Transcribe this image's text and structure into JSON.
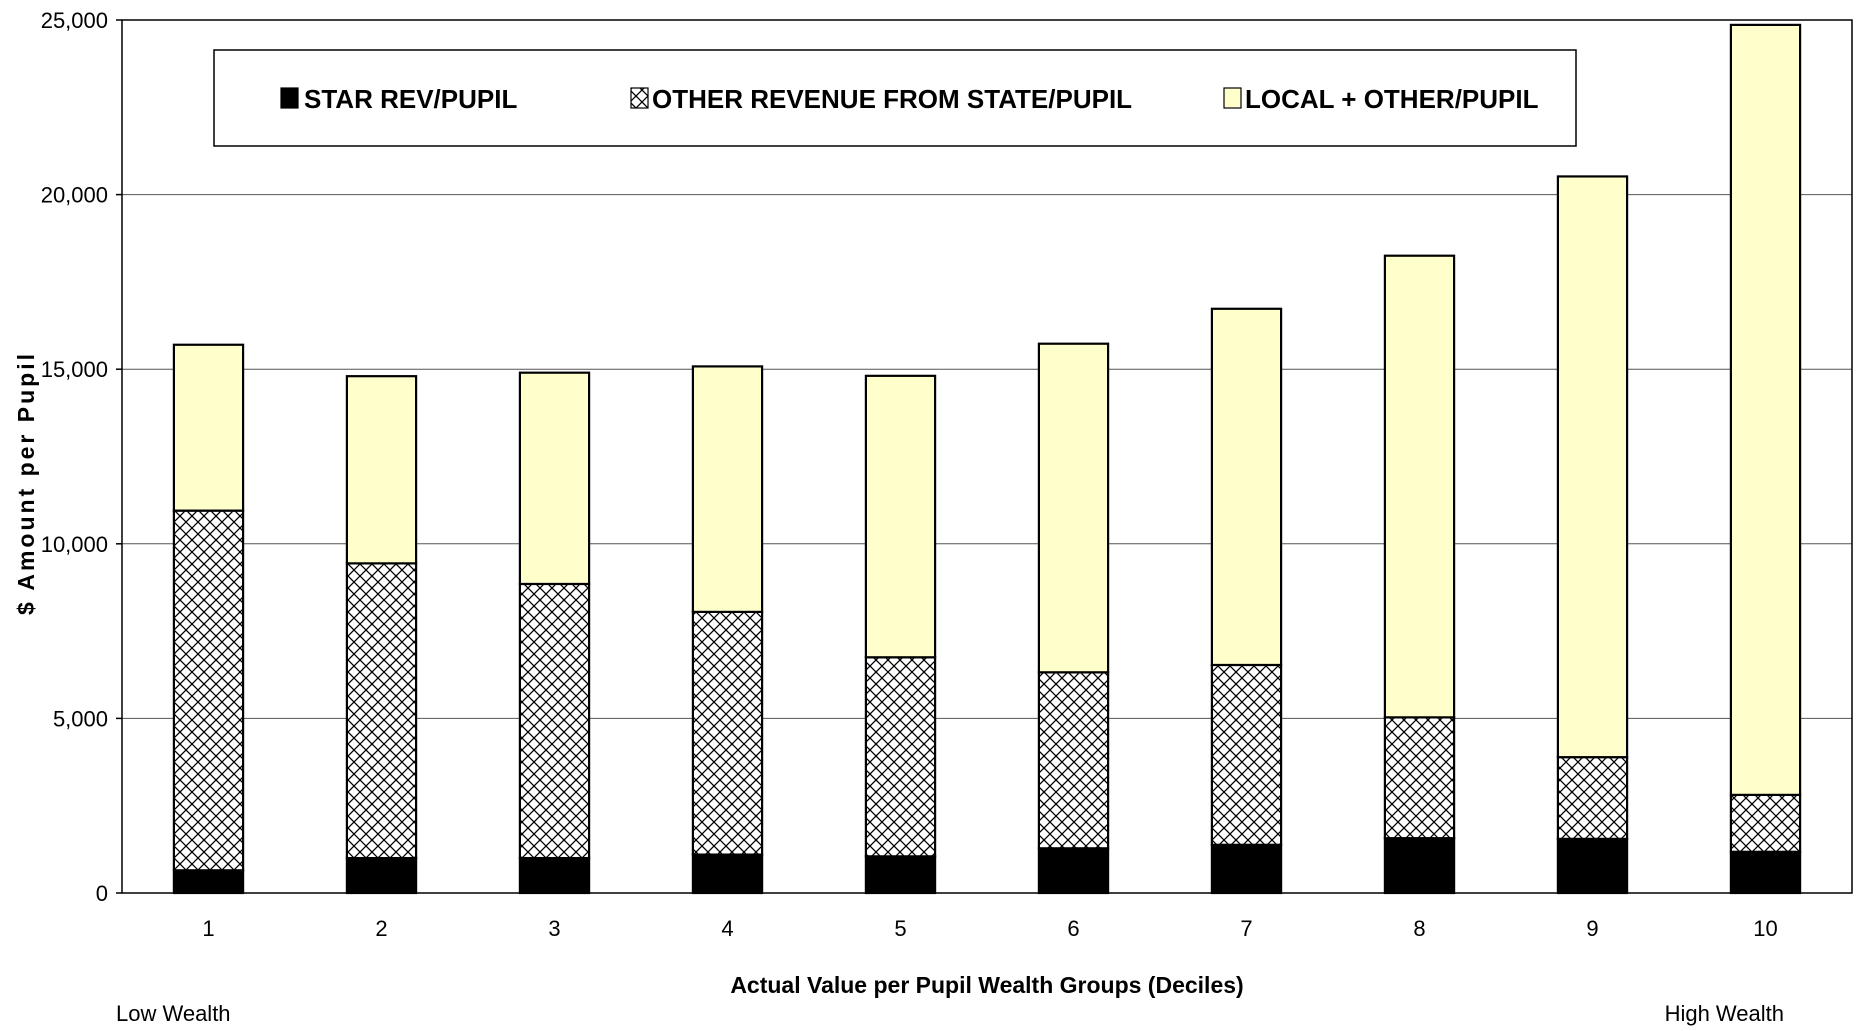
{
  "chart_data": {
    "type": "bar",
    "stacked": true,
    "categories": [
      "1",
      "2",
      "3",
      "4",
      "5",
      "6",
      "7",
      "8",
      "9",
      "10"
    ],
    "series": [
      {
        "name": "STAR REV/PUPIL",
        "values": [
          650,
          1000,
          1000,
          1100,
          1050,
          1280,
          1380,
          1570,
          1550,
          1180
        ],
        "color": "#000000",
        "fill": "solid"
      },
      {
        "name": "OTHER REVENUE FROM STATE/PUPIL",
        "values": [
          10300,
          8440,
          7850,
          6950,
          5700,
          5040,
          5150,
          3460,
          2340,
          1630
        ],
        "color": "#000000",
        "fill": "crosshatch"
      },
      {
        "name": "LOCAL + OTHER/PUPIL",
        "values": [
          4750,
          5360,
          6050,
          7030,
          8060,
          9410,
          10200,
          13220,
          16630,
          22050
        ],
        "color": "#FFFFCC",
        "fill": "solid"
      }
    ],
    "ylim": [
      0,
      25000
    ],
    "yticks": [
      "0",
      "5,000",
      "10,000",
      "15,000",
      "20,000",
      "25,000"
    ],
    "ylabel": "$ Amount per Pupil",
    "xlabel": "Actual Value per Pupil Wealth Groups (Deciles)",
    "grid": true,
    "legend_position": "top inside",
    "annotations": {
      "left": "Low Wealth",
      "right": "High Wealth"
    }
  }
}
